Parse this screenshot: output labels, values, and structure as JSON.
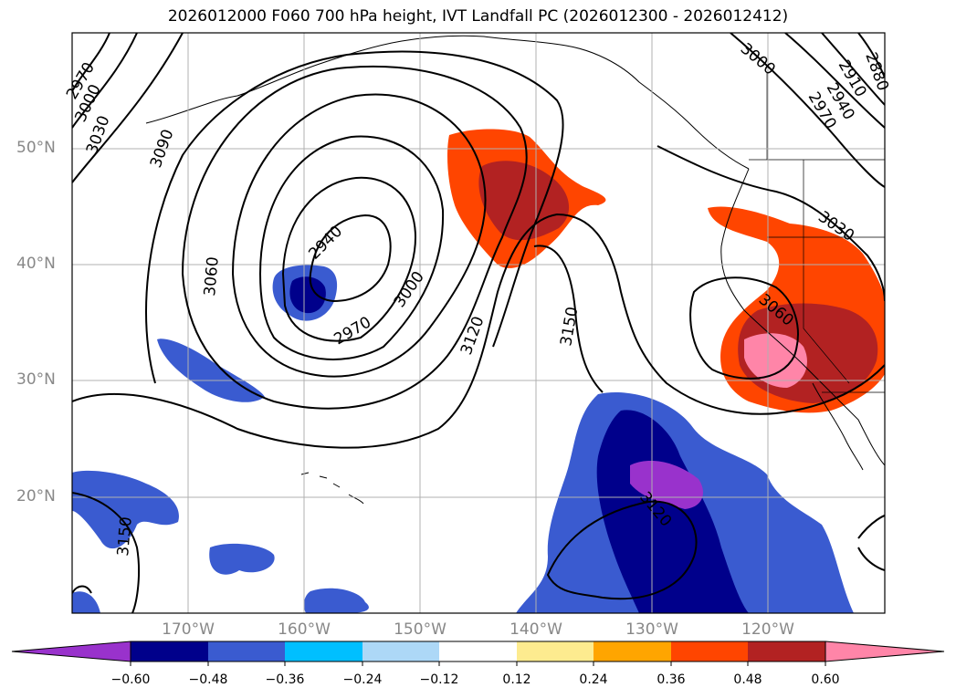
{
  "title": "2026012000 F060 700 hPa height, IVT Landfall PC (2026012300 - 2026012412)",
  "map": {
    "projection": "equirectangular",
    "extent": {
      "lon_min": -180,
      "lon_max": -110,
      "lat_min": 10,
      "lat_max": 60
    },
    "grid": true,
    "lat_ticks": [
      {
        "lat": 50,
        "label": "50°N"
      },
      {
        "lat": 40,
        "label": "40°N"
      },
      {
        "lat": 30,
        "label": "30°N"
      },
      {
        "lat": 20,
        "label": "20°N"
      }
    ],
    "lon_ticks": [
      {
        "lon": -170,
        "label": "170°W"
      },
      {
        "lon": -160,
        "label": "160°W"
      },
      {
        "lon": -150,
        "label": "150°W"
      },
      {
        "lon": -140,
        "label": "140°W"
      },
      {
        "lon": -130,
        "label": "130°W"
      },
      {
        "lon": -120,
        "label": "120°W"
      }
    ],
    "contour_labels": [
      "2970",
      "3000",
      "3030",
      "3090",
      "3060",
      "2940",
      "2970",
      "3000",
      "3120",
      "3150",
      "3000",
      "2910",
      "2940",
      "2880",
      "2970",
      "3030",
      "3060",
      "3120",
      "3150"
    ]
  },
  "colorbar": {
    "colors": [
      "#9932cc",
      "#00008b",
      "#3a5bd0",
      "#00bfff",
      "#add8f7",
      "#ffffff",
      "#fdeb8f",
      "#ffa500",
      "#ff4500",
      "#b22222",
      "#ff85a8"
    ],
    "ticks": [
      "−0.60",
      "−0.48",
      "−0.36",
      "−0.24",
      "−0.12",
      "0.12",
      "0.24",
      "0.36",
      "0.48",
      "0.60"
    ]
  }
}
